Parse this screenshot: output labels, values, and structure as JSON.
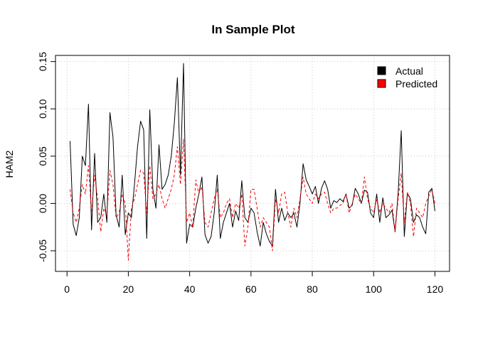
{
  "chart_data": {
    "type": "line",
    "title": "In Sample Plot",
    "xlabel": "",
    "ylabel": "HAM2",
    "xlim": [
      1,
      120
    ],
    "ylim": [
      -0.07,
      0.155
    ],
    "x_ticks": [
      0,
      20,
      40,
      60,
      80,
      100,
      120
    ],
    "x_tick_labels": [
      "0",
      "20",
      "40",
      "60",
      "80",
      "100",
      "120"
    ],
    "y_ticks": [
      -0.05,
      0.0,
      0.05,
      0.1,
      0.15
    ],
    "y_tick_labels": [
      "-0.05",
      "0.00",
      "0.05",
      "0.10",
      "0.15"
    ],
    "grid": true,
    "legend": {
      "position": "top-right",
      "entries": [
        {
          "label": "Actual",
          "color": "#000000"
        },
        {
          "label": "Predicted",
          "color": "#ff0000"
        }
      ]
    },
    "series": [
      {
        "name": "Actual",
        "color": "#000000",
        "line_style": "solid",
        "values": [
          0.066,
          -0.022,
          -0.034,
          -0.015,
          0.05,
          0.04,
          0.105,
          -0.028,
          0.053,
          -0.02,
          -0.015,
          0.01,
          -0.02,
          0.096,
          0.07,
          -0.012,
          -0.025,
          0.03,
          -0.033,
          -0.01,
          -0.015,
          0.02,
          0.06,
          0.087,
          0.078,
          -0.037,
          0.099,
          0.015,
          -0.005,
          0.062,
          0.015,
          0.02,
          0.03,
          0.05,
          0.085,
          0.133,
          0.03,
          0.148,
          -0.042,
          -0.022,
          -0.025,
          -0.005,
          0.01,
          0.028,
          -0.033,
          -0.042,
          -0.035,
          -0.01,
          0.03,
          -0.037,
          -0.02,
          -0.01,
          0.0,
          -0.025,
          -0.008,
          -0.018,
          0.024,
          -0.015,
          -0.02,
          -0.005,
          -0.01,
          -0.03,
          -0.045,
          -0.02,
          -0.032,
          -0.04,
          -0.045,
          0.015,
          -0.02,
          -0.005,
          -0.018,
          -0.01,
          -0.015,
          -0.01,
          -0.025,
          0.001,
          0.042,
          0.025,
          0.018,
          0.01,
          0.018,
          0.0,
          0.016,
          0.024,
          0.015,
          -0.005,
          0.003,
          0.001,
          0.005,
          0.002,
          0.01,
          -0.005,
          -0.002,
          0.016,
          0.01,
          0.0,
          0.014,
          0.012,
          -0.01,
          -0.015,
          0.01,
          -0.02,
          0.006,
          -0.015,
          -0.012,
          -0.007,
          -0.03,
          0.011,
          0.077,
          -0.035,
          0.011,
          0.005,
          -0.02,
          -0.012,
          -0.015,
          -0.025,
          -0.032,
          0.012,
          0.016,
          -0.008
        ]
      },
      {
        "name": "Predicted",
        "color": "#ff0000",
        "line_style": "dashed",
        "values": [
          0.015,
          -0.01,
          -0.02,
          -0.005,
          0.02,
          0.01,
          0.04,
          -0.01,
          0.03,
          0.005,
          -0.03,
          -0.005,
          -0.012,
          0.035,
          0.02,
          -0.015,
          -0.01,
          0.01,
          0.0,
          -0.06,
          -0.005,
          0.005,
          0.02,
          0.035,
          0.032,
          -0.01,
          0.04,
          0.005,
          0.01,
          0.02,
          0.005,
          -0.005,
          0.005,
          0.015,
          0.03,
          0.06,
          0.02,
          0.068,
          -0.02,
          -0.01,
          -0.025,
          0.025,
          0.01,
          0.018,
          -0.02,
          -0.025,
          -0.01,
          0.005,
          0.015,
          -0.015,
          -0.01,
          0.0,
          0.005,
          -0.015,
          0.0,
          -0.005,
          0.01,
          -0.045,
          -0.025,
          0.015,
          0.015,
          -0.005,
          -0.025,
          -0.015,
          -0.02,
          -0.025,
          -0.05,
          0.005,
          -0.01,
          0.01,
          0.012,
          -0.01,
          -0.025,
          -0.005,
          -0.015,
          0.005,
          0.028,
          0.01,
          0.005,
          0.0,
          0.01,
          0.005,
          0.01,
          0.012,
          0.0,
          -0.01,
          -0.005,
          -0.005,
          -0.002,
          0.0,
          0.01,
          -0.01,
          0.0,
          0.01,
          0.005,
          0.0,
          0.028,
          0.005,
          -0.005,
          -0.01,
          0.005,
          -0.01,
          0.0,
          -0.005,
          -0.01,
          0.0,
          -0.03,
          0.005,
          0.032,
          -0.02,
          0.012,
          0.0,
          -0.035,
          -0.005,
          -0.01,
          -0.015,
          0.0,
          0.008,
          0.015,
          0.0
        ]
      }
    ]
  }
}
